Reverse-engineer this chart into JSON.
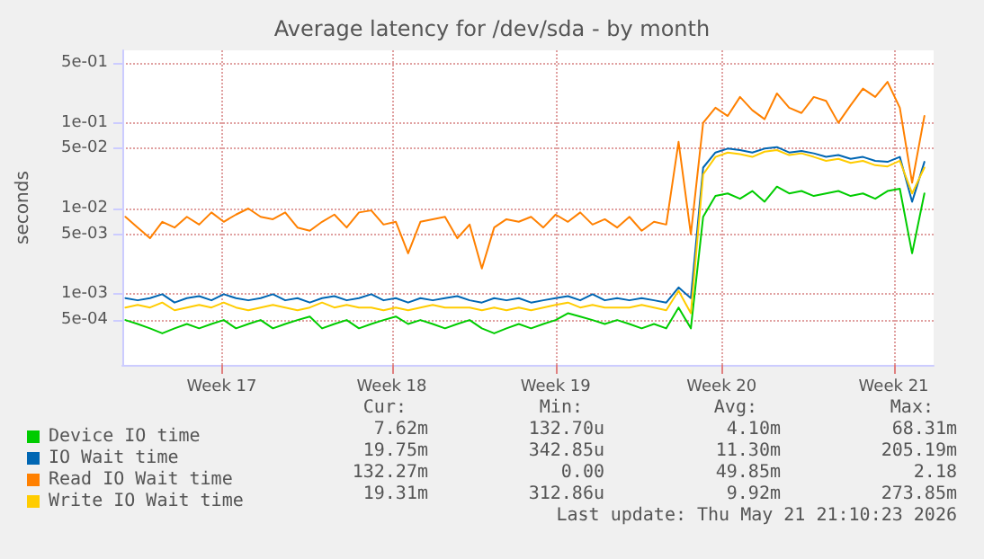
{
  "chart_data": {
    "type": "line",
    "title": "Average latency for /dev/sda - by month",
    "ylabel": "seconds",
    "x": [
      "2026-04-19T00:00",
      "2026-04-19T12:00",
      "2026-04-20T00:00",
      "2026-04-20T12:00",
      "2026-04-21T00:00",
      "2026-04-21T12:00",
      "2026-04-22T00:00",
      "2026-04-22T12:00",
      "2026-04-23T00:00",
      "2026-04-23T12:00",
      "2026-04-24T00:00",
      "2026-04-24T12:00",
      "2026-04-25T00:00",
      "2026-04-25T12:00",
      "2026-04-26T00:00",
      "2026-04-26T12:00",
      "2026-04-27T00:00",
      "2026-04-27T12:00",
      "2026-04-28T00:00",
      "2026-04-28T12:00",
      "2026-04-29T00:00",
      "2026-04-29T12:00",
      "2026-04-30T00:00",
      "2026-04-30T12:00",
      "2026-05-01T00:00",
      "2026-05-01T12:00",
      "2026-05-02T00:00",
      "2026-05-02T12:00",
      "2026-05-03T00:00",
      "2026-05-03T12:00",
      "2026-05-04T00:00",
      "2026-05-04T12:00",
      "2026-05-05T00:00",
      "2026-05-05T12:00",
      "2026-05-06T00:00",
      "2026-05-06T12:00",
      "2026-05-07T00:00",
      "2026-05-07T12:00",
      "2026-05-08T00:00",
      "2026-05-08T12:00",
      "2026-05-09T00:00",
      "2026-05-09T12:00",
      "2026-05-10T00:00",
      "2026-05-10T12:00",
      "2026-05-11T00:00",
      "2026-05-11T12:00",
      "2026-05-12T00:00",
      "2026-05-12T12:00",
      "2026-05-13T00:00",
      "2026-05-13T12:00",
      "2026-05-14T00:00",
      "2026-05-14T12:00",
      "2026-05-15T00:00",
      "2026-05-15T12:00",
      "2026-05-16T00:00",
      "2026-05-16T12:00",
      "2026-05-17T00:00",
      "2026-05-17T12:00",
      "2026-05-18T00:00",
      "2026-05-18T12:00",
      "2026-05-19T00:00",
      "2026-05-19T12:00",
      "2026-05-20T00:00",
      "2026-05-20T12:00",
      "2026-05-21T00:00",
      "2026-05-21T12:00"
    ],
    "series": [
      {
        "name": "Device IO time",
        "color": "#00cc00",
        "values": [
          0.0005,
          0.00045,
          0.0004,
          0.00035,
          0.0004,
          0.00045,
          0.0004,
          0.00045,
          0.0005,
          0.0004,
          0.00045,
          0.0005,
          0.0004,
          0.00045,
          0.0005,
          0.00055,
          0.0004,
          0.00045,
          0.0005,
          0.0004,
          0.00045,
          0.0005,
          0.00055,
          0.00045,
          0.0005,
          0.00045,
          0.0004,
          0.00045,
          0.0005,
          0.0004,
          0.00035,
          0.0004,
          0.00045,
          0.0004,
          0.00045,
          0.0005,
          0.0006,
          0.00055,
          0.0005,
          0.00045,
          0.0005,
          0.00045,
          0.0004,
          0.00045,
          0.0004,
          0.0007,
          0.0004,
          0.008,
          0.014,
          0.015,
          0.013,
          0.016,
          0.012,
          0.018,
          0.015,
          0.016,
          0.014,
          0.015,
          0.016,
          0.014,
          0.015,
          0.013,
          0.016,
          0.017,
          0.003,
          0.015
        ]
      },
      {
        "name": "IO Wait time",
        "color": "#0066b3",
        "values": [
          0.0009,
          0.00085,
          0.0009,
          0.001,
          0.0008,
          0.0009,
          0.00095,
          0.00085,
          0.001,
          0.0009,
          0.00085,
          0.0009,
          0.001,
          0.00085,
          0.0009,
          0.0008,
          0.0009,
          0.00095,
          0.00085,
          0.0009,
          0.001,
          0.00085,
          0.0009,
          0.0008,
          0.0009,
          0.00085,
          0.0009,
          0.00095,
          0.00085,
          0.0008,
          0.0009,
          0.00085,
          0.0009,
          0.0008,
          0.00085,
          0.0009,
          0.00095,
          0.00085,
          0.001,
          0.00085,
          0.0009,
          0.00085,
          0.0009,
          0.00085,
          0.0008,
          0.0012,
          0.0009,
          0.03,
          0.045,
          0.05,
          0.048,
          0.045,
          0.05,
          0.052,
          0.045,
          0.047,
          0.044,
          0.04,
          0.042,
          0.038,
          0.04,
          0.036,
          0.035,
          0.04,
          0.012,
          0.035
        ]
      },
      {
        "name": "Read IO Wait time",
        "color": "#ff8000",
        "values": [
          0.008,
          0.006,
          0.0045,
          0.007,
          0.006,
          0.008,
          0.0065,
          0.009,
          0.007,
          0.0085,
          0.01,
          0.008,
          0.0075,
          0.009,
          0.006,
          0.0055,
          0.007,
          0.0085,
          0.006,
          0.009,
          0.0095,
          0.0065,
          0.007,
          0.003,
          0.007,
          0.0075,
          0.008,
          0.0045,
          0.0065,
          0.002,
          0.006,
          0.0075,
          0.007,
          0.008,
          0.006,
          0.0085,
          0.007,
          0.009,
          0.0065,
          0.0075,
          0.006,
          0.008,
          0.0055,
          0.007,
          0.0065,
          0.06,
          0.005,
          0.1,
          0.15,
          0.12,
          0.2,
          0.14,
          0.11,
          0.22,
          0.15,
          0.13,
          0.2,
          0.18,
          0.1,
          0.16,
          0.25,
          0.2,
          0.3,
          0.15,
          0.02,
          0.12
        ]
      },
      {
        "name": "Write IO Wait time",
        "color": "#ffcc00",
        "values": [
          0.0007,
          0.00075,
          0.0007,
          0.0008,
          0.00065,
          0.0007,
          0.00075,
          0.0007,
          0.0008,
          0.0007,
          0.00065,
          0.0007,
          0.00075,
          0.0007,
          0.00065,
          0.0007,
          0.0008,
          0.0007,
          0.00075,
          0.0007,
          0.0007,
          0.00065,
          0.0007,
          0.00065,
          0.0007,
          0.00075,
          0.0007,
          0.0007,
          0.0007,
          0.00065,
          0.0007,
          0.00065,
          0.0007,
          0.00065,
          0.0007,
          0.00075,
          0.0008,
          0.0007,
          0.00075,
          0.0007,
          0.0007,
          0.0007,
          0.00075,
          0.0007,
          0.00065,
          0.0011,
          0.0006,
          0.025,
          0.04,
          0.045,
          0.043,
          0.04,
          0.046,
          0.048,
          0.042,
          0.044,
          0.04,
          0.036,
          0.038,
          0.034,
          0.036,
          0.032,
          0.031,
          0.036,
          0.015,
          0.03
        ]
      }
    ],
    "xlim": [
      "2026-04-18T21:00",
      "2026-05-21T21:00"
    ],
    "xticks": [
      {
        "value": "2026-04-22T22:00",
        "label": "Week 17"
      },
      {
        "value": "2026-04-29T20:00",
        "label": "Week 18"
      },
      {
        "value": "2026-05-06T12:00",
        "label": "Week 19"
      },
      {
        "value": "2026-05-13T06:00",
        "label": "Week 20"
      },
      {
        "value": "2026-05-20T06:00",
        "label": "Week 21"
      }
    ],
    "log": true,
    "ylim": [
      0.00015,
      0.7
    ],
    "yticks": [
      {
        "value": 0.0005,
        "label": "5e-04"
      },
      {
        "value": 0.001,
        "label": "1e-03"
      },
      {
        "value": 0.005,
        "label": "5e-03"
      },
      {
        "value": 0.01,
        "label": "1e-02"
      },
      {
        "value": 0.05,
        "label": "5e-02"
      },
      {
        "value": 0.1,
        "label": "1e-01"
      },
      {
        "value": 0.5,
        "label": "5e-01"
      }
    ],
    "grid": true,
    "legend": "bottom left",
    "marker": "none",
    "annotations": [
      "Cur:",
      "Min:",
      "Avg:",
      "Max:",
      "7.62m",
      "132.70u",
      "4.10m",
      "68.31m",
      "19.75m",
      "342.85u",
      "11.30m",
      "205.19m",
      "132.27m",
      "0.00",
      "49.85m",
      "2.18",
      "19.31m",
      "312.86u",
      "9.92m",
      "273.85m",
      "Last update: Thu May 21 21:10:23 2026"
    ]
  }
}
